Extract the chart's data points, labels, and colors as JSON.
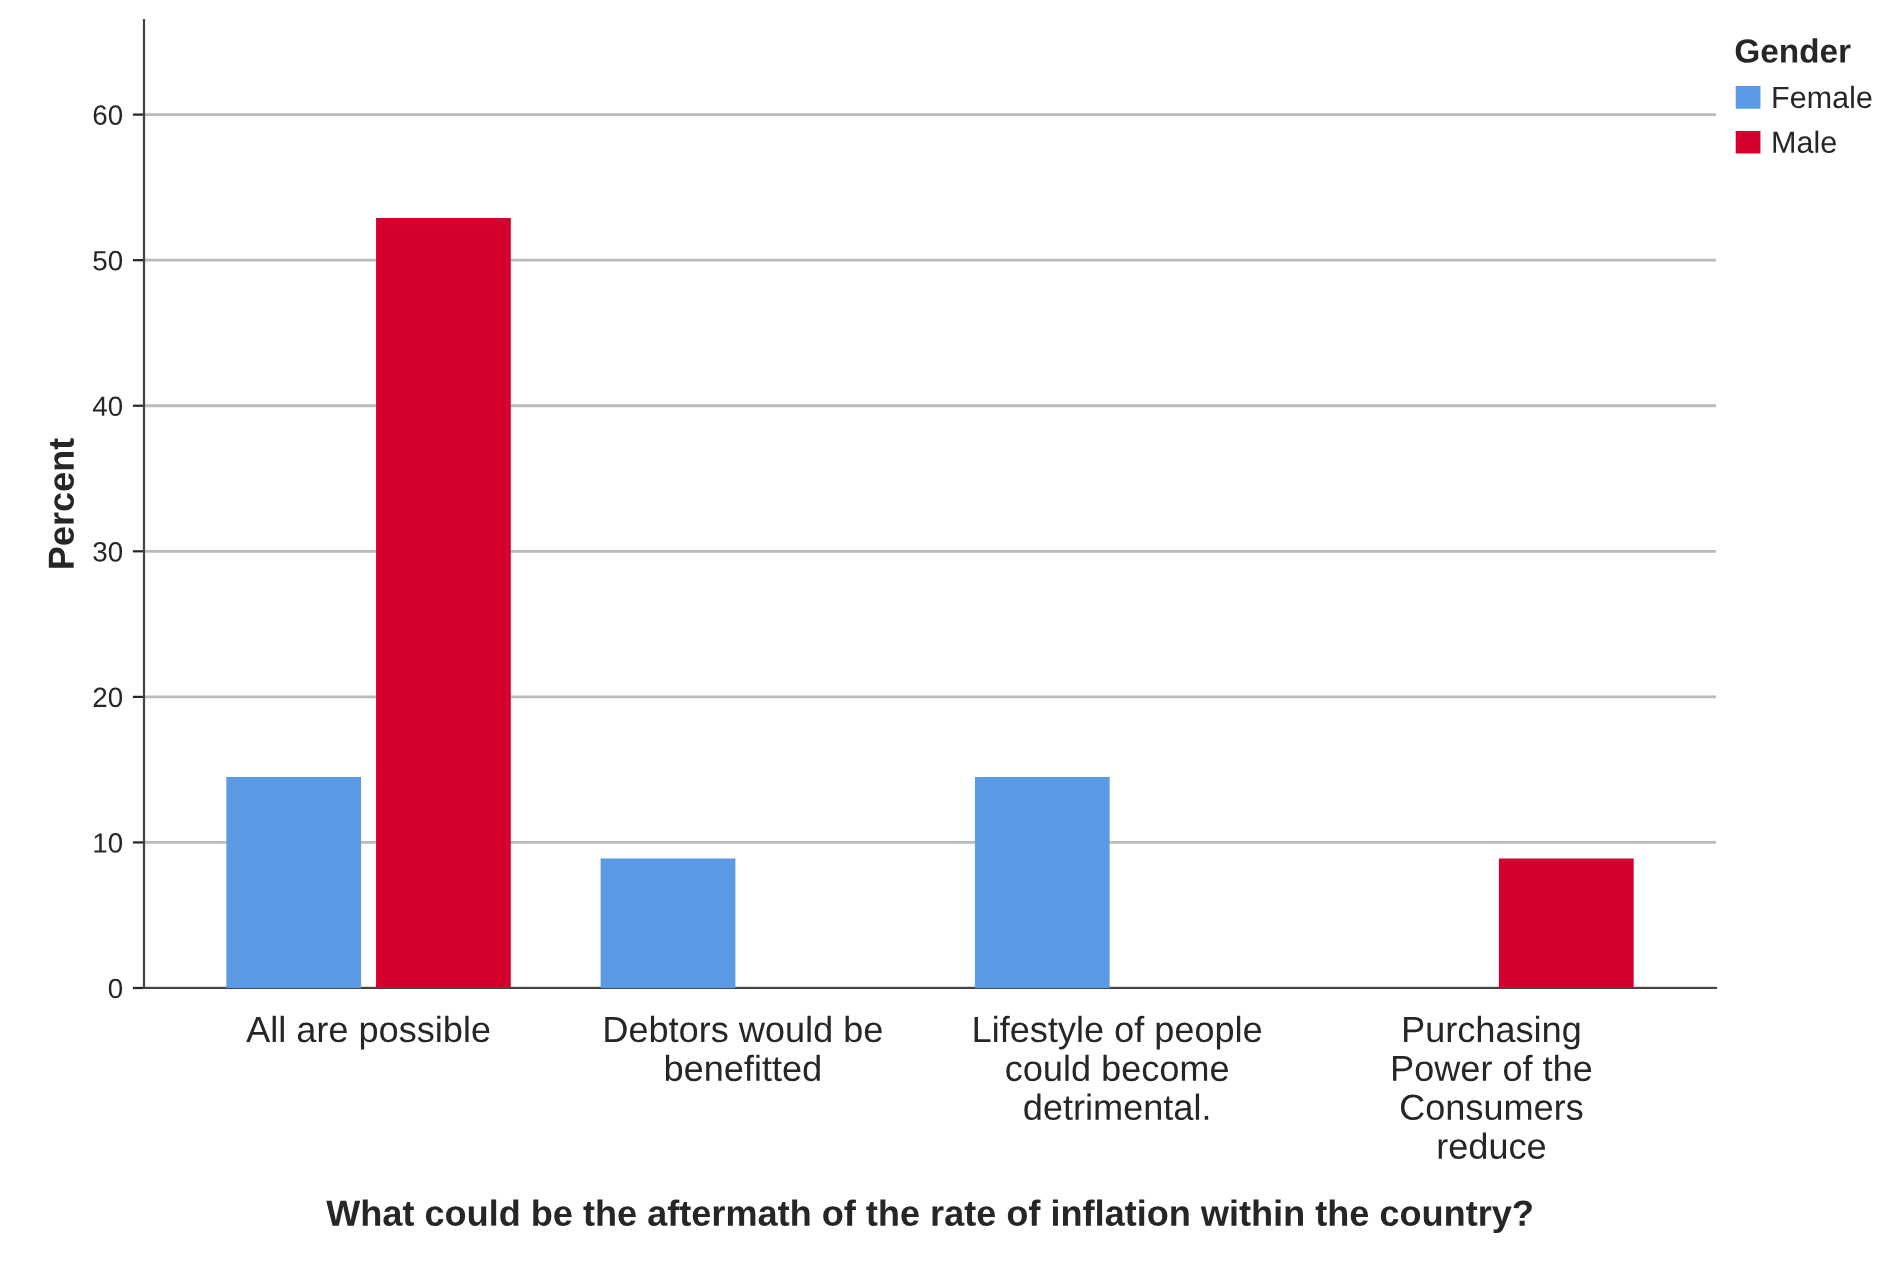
{
  "chart_data": {
    "type": "bar",
    "xlabel": "What could be the aftermath of the rate of inflation within the country?",
    "ylabel": "Percent",
    "legend_title": "Gender",
    "categories": [
      "All are possible",
      "Debtors would be\nbenefitted",
      "Lifestyle of people\ncould become\ndetrimental.",
      "Purchasing\nPower of the\nConsumers\nreduce"
    ],
    "series": [
      {
        "name": "Female",
        "color": "#5b9be6",
        "values": [
          14.5,
          8.9,
          14.5,
          null
        ]
      },
      {
        "name": "Male",
        "color": "#d6002f",
        "values": [
          52.9,
          null,
          null,
          8.9
        ]
      }
    ],
    "ylim": [
      0,
      66.5
    ],
    "yticks": [
      0,
      10,
      20,
      30,
      40,
      50,
      60
    ],
    "grid": "y",
    "legend": "top right"
  }
}
